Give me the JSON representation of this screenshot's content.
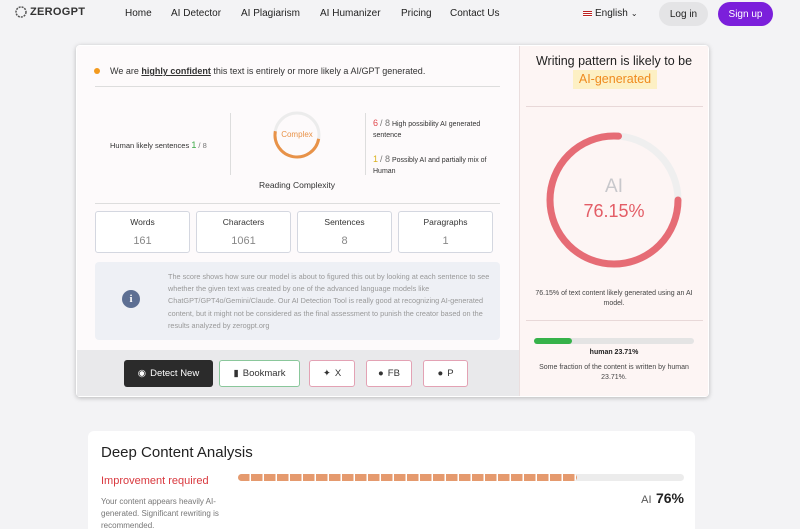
{
  "nav": {
    "logo": "ZEROGPT",
    "links": [
      "Home",
      "AI Detector",
      "AI Plagiarism",
      "AI Humanizer",
      "Pricing",
      "Contact Us"
    ],
    "language": "English",
    "login": "Log in",
    "signup": "Sign up"
  },
  "result": {
    "confidence": {
      "before": "We are",
      "strong": "highly confident",
      "after": "this text is entirely or more likely a AI/GPT generated."
    },
    "human_sentences": {
      "label": "Human likely sentences",
      "count": "1",
      "total": "/ 8"
    },
    "complexity": {
      "level": "Complex",
      "label": "Reading Complexity"
    },
    "high_ai": {
      "count": "6",
      "total": "/ 8",
      "label": "High possibility AI generated sentence"
    },
    "mixed": {
      "count": "1",
      "total": "/ 8",
      "label": "Possibly AI and partially mix of Human"
    },
    "stats": [
      {
        "label": "Words",
        "value": "161"
      },
      {
        "label": "Characters",
        "value": "1061"
      },
      {
        "label": "Sentences",
        "value": "8"
      },
      {
        "label": "Paragraphs",
        "value": "1"
      }
    ],
    "info": "The score shows how sure our model is about to figured this out by looking at each sentence to see whether the given text was created by one of the advanced language models like ChatGPT/GPT4o/Gemini/Claude. Our AI Detection Tool is really good at recognizing AI-generated content, but it might not be considered as the final assessment to punish the creator based on the results analyzed by zerogpt.org",
    "buttons": [
      "Detect New",
      "Bookmark",
      "X",
      "FB",
      "P"
    ]
  },
  "verdict": {
    "heading": "Writing pattern is likely to be",
    "label": "AI-generated",
    "gauge_label": "AI",
    "gauge_value": "76.15%",
    "gauge_caption": "76.15% of text content likely generated using an AI model.",
    "human_label": "human 23.71%",
    "human_caption": "Some fraction of the content is written by human 23.71%."
  },
  "analysis": {
    "title": "Deep Content Analysis",
    "status": "Improvement required",
    "description": "Your content appears heavily AI-generated. Significant rewriting is recommended.",
    "score_label": "AI",
    "score_value": "76%"
  }
}
